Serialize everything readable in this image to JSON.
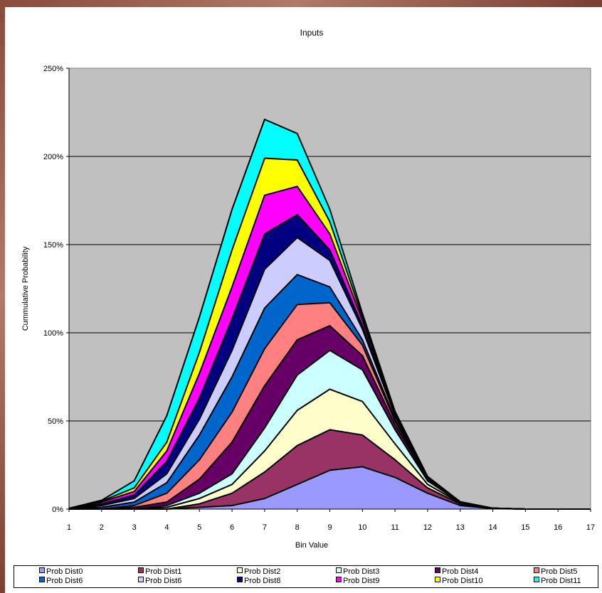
{
  "chart_data": {
    "type": "area",
    "stacked": true,
    "title": "Inputs",
    "xlabel": "Bin Value",
    "ylabel": "Cummulative Probability",
    "x": [
      1,
      2,
      3,
      4,
      5,
      6,
      7,
      8,
      9,
      10,
      11,
      12,
      13,
      14,
      15,
      16,
      17
    ],
    "ylim": [
      0,
      2.5
    ],
    "yticks": [
      0,
      0.5,
      1.0,
      1.5,
      2.0,
      2.5
    ],
    "ytick_labels": [
      "0%",
      "50%",
      "100%",
      "150%",
      "200%",
      "250%"
    ],
    "grid": true,
    "legend_position": "bottom",
    "plot_background": "#c0c0c0",
    "series": [
      {
        "name": "Prob Dist0",
        "color": "#9999ff",
        "values": [
          0,
          0,
          0,
          0,
          0.01,
          0.02,
          0.06,
          0.14,
          0.22,
          0.24,
          0.18,
          0.09,
          0.02,
          0.003,
          0,
          0,
          0
        ]
      },
      {
        "name": "Prob Dist1",
        "color": "#993366",
        "values": [
          0,
          0,
          0,
          0,
          0.02,
          0.07,
          0.15,
          0.22,
          0.23,
          0.18,
          0.1,
          0.03,
          0.01,
          0.002,
          0,
          0,
          0
        ]
      },
      {
        "name": "Prob Dist2",
        "color": "#ffffcc",
        "values": [
          0,
          0,
          0,
          0.01,
          0.03,
          0.05,
          0.12,
          0.2,
          0.23,
          0.19,
          0.09,
          0.02,
          0.005,
          0,
          0,
          0,
          0
        ]
      },
      {
        "name": "Prob Dist3",
        "color": "#ccffff",
        "values": [
          0,
          0,
          0,
          0.01,
          0.03,
          0.06,
          0.13,
          0.2,
          0.22,
          0.18,
          0.08,
          0.02,
          0.003,
          0,
          0,
          0,
          0
        ]
      },
      {
        "name": "Prob Dist4",
        "color": "#660066",
        "values": [
          0,
          0,
          0.01,
          0.02,
          0.08,
          0.18,
          0.24,
          0.2,
          0.14,
          0.08,
          0.03,
          0.01,
          0.002,
          0,
          0,
          0,
          0
        ]
      },
      {
        "name": "Prob Dist5",
        "color": "#ff8080",
        "values": [
          0,
          0,
          0.01,
          0.05,
          0.11,
          0.17,
          0.21,
          0.2,
          0.13,
          0.06,
          0.02,
          0.005,
          0.001,
          0,
          0,
          0,
          0
        ]
      },
      {
        "name": "Prob Dist6",
        "color": "#0066cc",
        "values": [
          0,
          0.01,
          0.02,
          0.06,
          0.14,
          0.2,
          0.23,
          0.17,
          0.09,
          0.03,
          0.01,
          0.002,
          0,
          0,
          0,
          0,
          0
        ]
      },
      {
        "name": "Prob Dist6",
        "color": "#ccccff",
        "values": [
          0,
          0.01,
          0.02,
          0.05,
          0.09,
          0.15,
          0.22,
          0.21,
          0.15,
          0.06,
          0.02,
          0.003,
          0,
          0,
          0,
          0,
          0
        ]
      },
      {
        "name": "Prob Dist8",
        "color": "#000080",
        "values": [
          0,
          0.01,
          0.02,
          0.07,
          0.12,
          0.18,
          0.2,
          0.13,
          0.06,
          0.02,
          0.005,
          0.001,
          0,
          0,
          0,
          0,
          0
        ]
      },
      {
        "name": "Prob Dist9",
        "color": "#ff00ff",
        "values": [
          0,
          0.01,
          0.02,
          0.06,
          0.14,
          0.18,
          0.22,
          0.16,
          0.09,
          0.03,
          0.01,
          0.002,
          0,
          0,
          0,
          0,
          0
        ]
      },
      {
        "name": "Prob Dist10",
        "color": "#ffff00",
        "values": [
          0,
          0.005,
          0.02,
          0.05,
          0.12,
          0.21,
          0.21,
          0.15,
          0.07,
          0.02,
          0.005,
          0.001,
          0,
          0,
          0,
          0,
          0
        ]
      },
      {
        "name": "Prob Dist11",
        "color": "#00ffff",
        "values": [
          0.005,
          0.005,
          0.04,
          0.15,
          0.2,
          0.23,
          0.22,
          0.15,
          0.07,
          0.02,
          0.005,
          0.001,
          0,
          0,
          0,
          0,
          0
        ]
      }
    ]
  }
}
